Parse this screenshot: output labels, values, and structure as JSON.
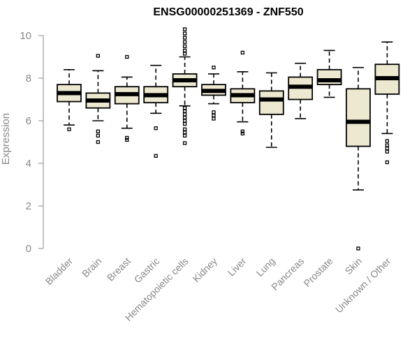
{
  "chart_data": {
    "type": "boxplot",
    "title": "ENSG00000251369 - ZNF550",
    "xlabel": "",
    "ylabel": "Expression",
    "ylim": [
      0,
      10.3
    ],
    "yticks": [
      0,
      2,
      4,
      6,
      8,
      10
    ],
    "grid": false,
    "legend": "none",
    "box_fill": "#ede8d0",
    "box_stroke": "#000000",
    "categories": [
      "Bladder",
      "Brain",
      "Breast",
      "Gastric",
      "Hematopoietic cells",
      "Kidney",
      "Liver",
      "Lung",
      "Pancreas",
      "Prostate",
      "Skin",
      "Unknown / Other"
    ],
    "boxes": [
      {
        "category": "Bladder",
        "whisker_low": 5.8,
        "q1": 6.9,
        "median": 7.3,
        "q3": 7.7,
        "whisker_high": 8.4,
        "outliers": [
          5.6
        ]
      },
      {
        "category": "Brain",
        "whisker_low": 6.0,
        "q1": 6.6,
        "median": 6.95,
        "q3": 7.3,
        "whisker_high": 8.35,
        "outliers": [
          9.05,
          5.5,
          5.3,
          5.0
        ]
      },
      {
        "category": "Breast",
        "whisker_low": 5.65,
        "q1": 6.8,
        "median": 7.25,
        "q3": 7.6,
        "whisker_high": 8.05,
        "outliers": [
          9.0,
          5.2,
          5.1
        ]
      },
      {
        "category": "Gastric",
        "whisker_low": 6.35,
        "q1": 6.85,
        "median": 7.2,
        "q3": 7.6,
        "whisker_high": 8.6,
        "outliers": [
          5.65,
          4.35
        ]
      },
      {
        "category": "Hematopoietic cells",
        "whisker_low": 6.7,
        "q1": 7.6,
        "median": 7.9,
        "q3": 8.2,
        "whisker_high": 9.0,
        "outliers": [
          10.3,
          10.1,
          9.9,
          9.7,
          9.5,
          9.3,
          9.15,
          6.6,
          6.45,
          6.3,
          6.15,
          6.0,
          5.85,
          5.6,
          5.45,
          5.3,
          4.95
        ]
      },
      {
        "category": "Kidney",
        "whisker_low": 6.8,
        "q1": 7.2,
        "median": 7.4,
        "q3": 7.7,
        "whisker_high": 8.2,
        "outliers": [
          8.5,
          6.4,
          6.25,
          6.1
        ]
      },
      {
        "category": "Liver",
        "whisker_low": 5.95,
        "q1": 6.85,
        "median": 7.2,
        "q3": 7.5,
        "whisker_high": 8.3,
        "outliers": [
          9.2,
          5.5,
          5.4
        ]
      },
      {
        "category": "Lung",
        "whisker_low": 4.75,
        "q1": 6.3,
        "median": 7.0,
        "q3": 7.4,
        "whisker_high": 8.25,
        "outliers": []
      },
      {
        "category": "Pancreas",
        "whisker_low": 6.1,
        "q1": 7.0,
        "median": 7.6,
        "q3": 8.05,
        "whisker_high": 8.7,
        "outliers": []
      },
      {
        "category": "Prostate",
        "whisker_low": 7.1,
        "q1": 7.7,
        "median": 7.9,
        "q3": 8.4,
        "whisker_high": 9.3,
        "outliers": []
      },
      {
        "category": "Skin",
        "whisker_low": 2.75,
        "q1": 4.8,
        "median": 5.95,
        "q3": 7.5,
        "whisker_high": 8.5,
        "outliers": [
          0.0
        ]
      },
      {
        "category": "Unknown / Other",
        "whisker_low": 5.4,
        "q1": 7.25,
        "median": 8.0,
        "q3": 8.65,
        "whisker_high": 9.7,
        "outliers": [
          5.05,
          4.85,
          4.7,
          4.55,
          4.05
        ]
      }
    ]
  }
}
